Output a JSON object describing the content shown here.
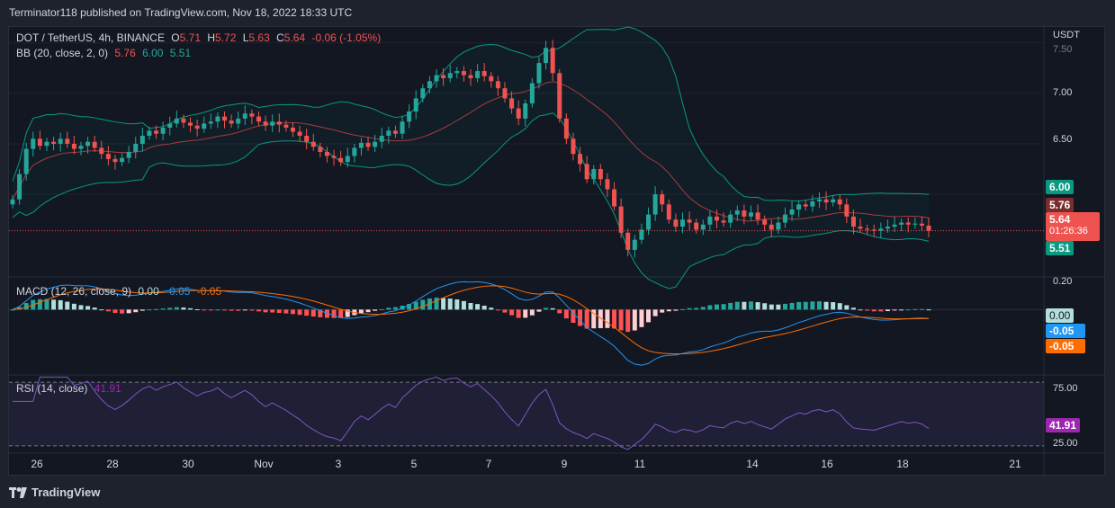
{
  "header": {
    "publisher_text": "Terminator118 published on TradingView.com, Nov 18, 2022 18:33 UTC"
  },
  "legend": {
    "symbol": "DOT / TetherUS, 4h, BINANCE",
    "open_label": "O",
    "open": "5.71",
    "high_label": "H",
    "high": "5.72",
    "low_label": "L",
    "low": "5.63",
    "close_label": "C",
    "close": "5.64",
    "change": "-0.06 (-1.05%)",
    "bb_label": "BB (20, close, 2, 0)",
    "bb_mid": "5.76",
    "bb_upper": "6.00",
    "bb_lower": "5.51",
    "macd_label": "MACD (12, 26, close, 9)",
    "macd_hist": "0.00",
    "macd_line": "-0.05",
    "macd_signal": "-0.05",
    "rsi_label": "RSI (14, close)",
    "rsi_value": "41.91"
  },
  "price_axis": {
    "currency": "USDT",
    "ticks": [
      "7.50",
      "7.00",
      "6.50",
      "6.00"
    ]
  },
  "price_badges": {
    "upper": "6.00",
    "mid": "5.76",
    "last": "5.64",
    "countdown": "01:26:36",
    "lower": "5.51"
  },
  "macd_axis": {
    "ticks": [
      "0.20"
    ],
    "badge_hist": "0.00",
    "badge_macd": "-0.05",
    "badge_signal": "-0.05"
  },
  "rsi_axis": {
    "ticks": [
      "75.00",
      "25.00"
    ],
    "badge": "41.91"
  },
  "time_axis": [
    "26",
    "28",
    "30",
    "Nov",
    "3",
    "5",
    "7",
    "9",
    "11",
    "14",
    "16",
    "18",
    "21"
  ],
  "brand": "TradingView",
  "colors": {
    "up": "#26a69a",
    "down": "#ef5350",
    "bb_band": "#089981",
    "bb_basis": "#a73c3c",
    "macd": "#2196f3",
    "signal": "#ff6d00",
    "rsi": "#7e57c2",
    "rsi_fill": "#7e57c2"
  },
  "chart_data": {
    "type": "candlestick",
    "interval": "4h",
    "price_range": [
      5.2,
      7.55
    ],
    "x_labels": [
      "26",
      "28",
      "30",
      "Nov",
      "3",
      "5",
      "7",
      "9",
      "11",
      "14",
      "16",
      "18",
      "21"
    ],
    "close_series": [
      5.95,
      6.2,
      6.45,
      6.55,
      6.48,
      6.52,
      6.5,
      6.55,
      6.5,
      6.45,
      6.48,
      6.52,
      6.46,
      6.4,
      6.35,
      6.32,
      6.36,
      6.42,
      6.5,
      6.58,
      6.63,
      6.6,
      6.66,
      6.7,
      6.75,
      6.71,
      6.68,
      6.65,
      6.7,
      6.72,
      6.77,
      6.73,
      6.7,
      6.75,
      6.8,
      6.77,
      6.72,
      6.68,
      6.72,
      6.69,
      6.66,
      6.62,
      6.58,
      6.52,
      6.47,
      6.42,
      6.38,
      6.36,
      6.32,
      6.38,
      6.46,
      6.51,
      6.47,
      6.52,
      6.58,
      6.63,
      6.6,
      6.72,
      6.82,
      6.95,
      7.05,
      7.12,
      7.18,
      7.15,
      7.2,
      7.22,
      7.18,
      7.15,
      7.22,
      7.17,
      7.12,
      7.05,
      6.95,
      6.85,
      6.75,
      6.9,
      7.1,
      7.3,
      7.45,
      7.2,
      6.75,
      6.55,
      6.4,
      6.3,
      6.15,
      6.25,
      6.15,
      6.05,
      5.88,
      5.62,
      5.45,
      5.55,
      5.65,
      5.8,
      6.0,
      5.9,
      5.75,
      5.68,
      5.75,
      5.72,
      5.65,
      5.7,
      5.78,
      5.74,
      5.72,
      5.8,
      5.84,
      5.78,
      5.82,
      5.75,
      5.7,
      5.65,
      5.72,
      5.8,
      5.85,
      5.9,
      5.88,
      5.93,
      5.95,
      5.92,
      5.95,
      5.9,
      5.78,
      5.68,
      5.66,
      5.65,
      5.64,
      5.66,
      5.68,
      5.7,
      5.72,
      5.7,
      5.71,
      5.69,
      5.64
    ],
    "bollinger": {
      "basis_last": 5.76,
      "upper_last": 6.0,
      "lower_last": 5.51
    },
    "last_price": 5.64,
    "macd": {
      "range": [
        -0.4,
        0.2
      ],
      "last_hist": 0.0,
      "last_macd": -0.05,
      "last_signal": -0.05
    },
    "rsi": {
      "range": [
        20,
        80
      ],
      "overbought": 75,
      "oversold": 25,
      "last": 41.91
    }
  }
}
